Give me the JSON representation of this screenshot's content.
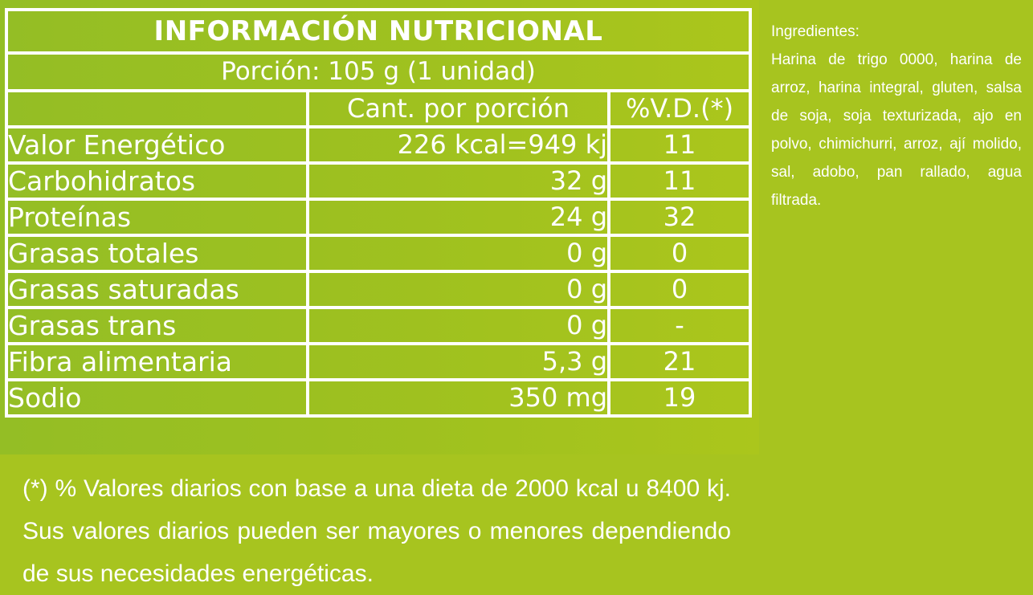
{
  "label": {
    "title": "INFORMACIÓN NUTRICIONAL",
    "portion": "Porción: 105 g (1 unidad)",
    "col_amount_header": "Cant. por porción",
    "col_dv_header": "%V.D.(*)",
    "rows": [
      {
        "name": "Valor Energético",
        "amount": "226 kcal=949 kj",
        "dv": "11"
      },
      {
        "name": "Carbohidratos",
        "amount": "32 g",
        "dv": "11"
      },
      {
        "name": "Proteínas",
        "amount": "24 g",
        "dv": "32"
      },
      {
        "name": "Grasas totales",
        "amount": "0 g",
        "dv": "0"
      },
      {
        "name": "Grasas saturadas",
        "amount": "0 g",
        "dv": "0"
      },
      {
        "name": "Grasas trans",
        "amount": "0 g",
        "dv": "-"
      },
      {
        "name": "Fibra alimentaria",
        "amount": "5,3 g",
        "dv": "21"
      },
      {
        "name": "Sodio",
        "amount": "350 mg",
        "dv": "19"
      }
    ]
  },
  "ingredients": {
    "title": "Ingredientes:",
    "text": "Harina de trigo 0000, harina de arroz, harina integral, gluten, salsa de soja, soja texturizada, ajo en polvo, chimichurri, arroz, ají molido, sal, adobo, pan rallado, agua filtrada."
  },
  "footnote": "(*) % Valores diarios con base a una dieta de 2000 kcal u 8400 kj. Sus valores diarios pueden ser mayores o menores dependiendo de sus necesidades energéticas.",
  "colors": {
    "background": "#a7c41f",
    "border": "#ffffff",
    "text": "#ffffff"
  }
}
